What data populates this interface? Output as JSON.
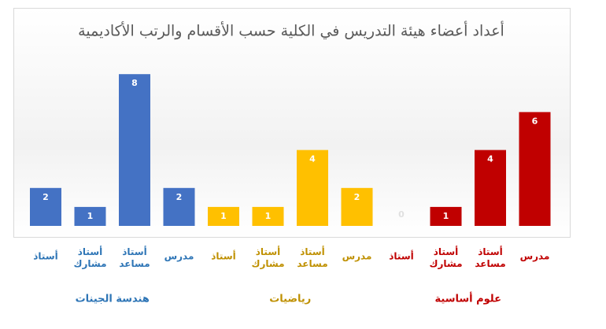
{
  "chart_data": {
    "type": "grouped-bar",
    "title": "أعداد أعضاء هيئة التدريس في الكلية حسب الأقسام والرتب الأكاديمية",
    "groups": [
      {
        "name": "هندسة الجينات",
        "color": "#4472c4",
        "label_color": "#2e75b6",
        "categories": [
          "أستاذ",
          "أستاذ مشارك",
          "أستاذ مساعد",
          "مدرس"
        ],
        "values": [
          2,
          1,
          8,
          2
        ]
      },
      {
        "name": "رياضيات",
        "color": "#ffc000",
        "label_color": "#bf9000",
        "categories": [
          "أستاذ",
          "أستاذ مشارك",
          "أستاذ مساعد",
          "مدرس"
        ],
        "values": [
          1,
          1,
          4,
          2
        ]
      },
      {
        "name": "علوم أساسية",
        "color": "#c00000",
        "label_color": "#c00000",
        "categories": [
          "أستاذ",
          "أستاذ مشارك",
          "أستاذ مساعد",
          "مدرس"
        ],
        "values": [
          0,
          1,
          4,
          6
        ]
      }
    ]
  }
}
